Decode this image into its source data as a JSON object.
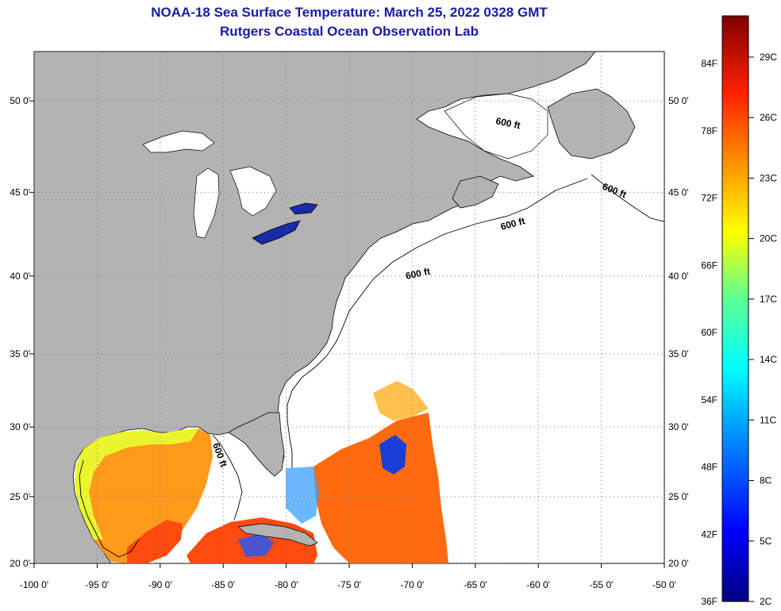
{
  "title_line1": "NOAA-18 Sea Surface Temperature:  March 25, 2022 0328 GMT",
  "title_line2": "Rutgers Coastal Ocean Observation Lab",
  "lat_labels": [
    {
      "lat": 50,
      "text": "50 0'"
    },
    {
      "lat": 45,
      "text": "45 0'"
    },
    {
      "lat": 40,
      "text": "40 0'"
    },
    {
      "lat": 35,
      "text": "35 0'"
    },
    {
      "lat": 30,
      "text": "30 0'"
    },
    {
      "lat": 25,
      "text": "25 0'"
    },
    {
      "lat": 20,
      "text": "20 0'"
    }
  ],
  "lon_labels": [
    {
      "lon": -100,
      "text": "-100 0'"
    },
    {
      "lon": -95,
      "text": "-95 0'"
    },
    {
      "lon": -90,
      "text": "-90 0'"
    },
    {
      "lon": -85,
      "text": "-85 0'"
    },
    {
      "lon": -80,
      "text": "-80 0'"
    },
    {
      "lon": -75,
      "text": "-75 0'"
    },
    {
      "lon": -70,
      "text": "-70 0'"
    },
    {
      "lon": -65,
      "text": "-65 0'"
    },
    {
      "lon": -60,
      "text": "-60 0'"
    },
    {
      "lon": -55,
      "text": "-55 0'"
    },
    {
      "lon": -50,
      "text": "-50 0'"
    }
  ],
  "contour_label": "600 ft",
  "colorbar": {
    "fahrenheit": [
      "84F",
      "78F",
      "72F",
      "66F",
      "60F",
      "54F",
      "48F",
      "42F",
      "36F"
    ],
    "celsius": [
      "29C",
      "26C",
      "23C",
      "20C",
      "17C",
      "14C",
      "11C",
      "8C",
      "5C",
      "2C"
    ],
    "colors": [
      "#00007f",
      "#0000ff",
      "#00a0ff",
      "#00ffff",
      "#60ff90",
      "#ffff00",
      "#ff9000",
      "#ff2000",
      "#7f0000"
    ]
  },
  "map_colors": {
    "land": "#b3b3b3",
    "ocean": "#ffffff",
    "grid": "#777777"
  }
}
